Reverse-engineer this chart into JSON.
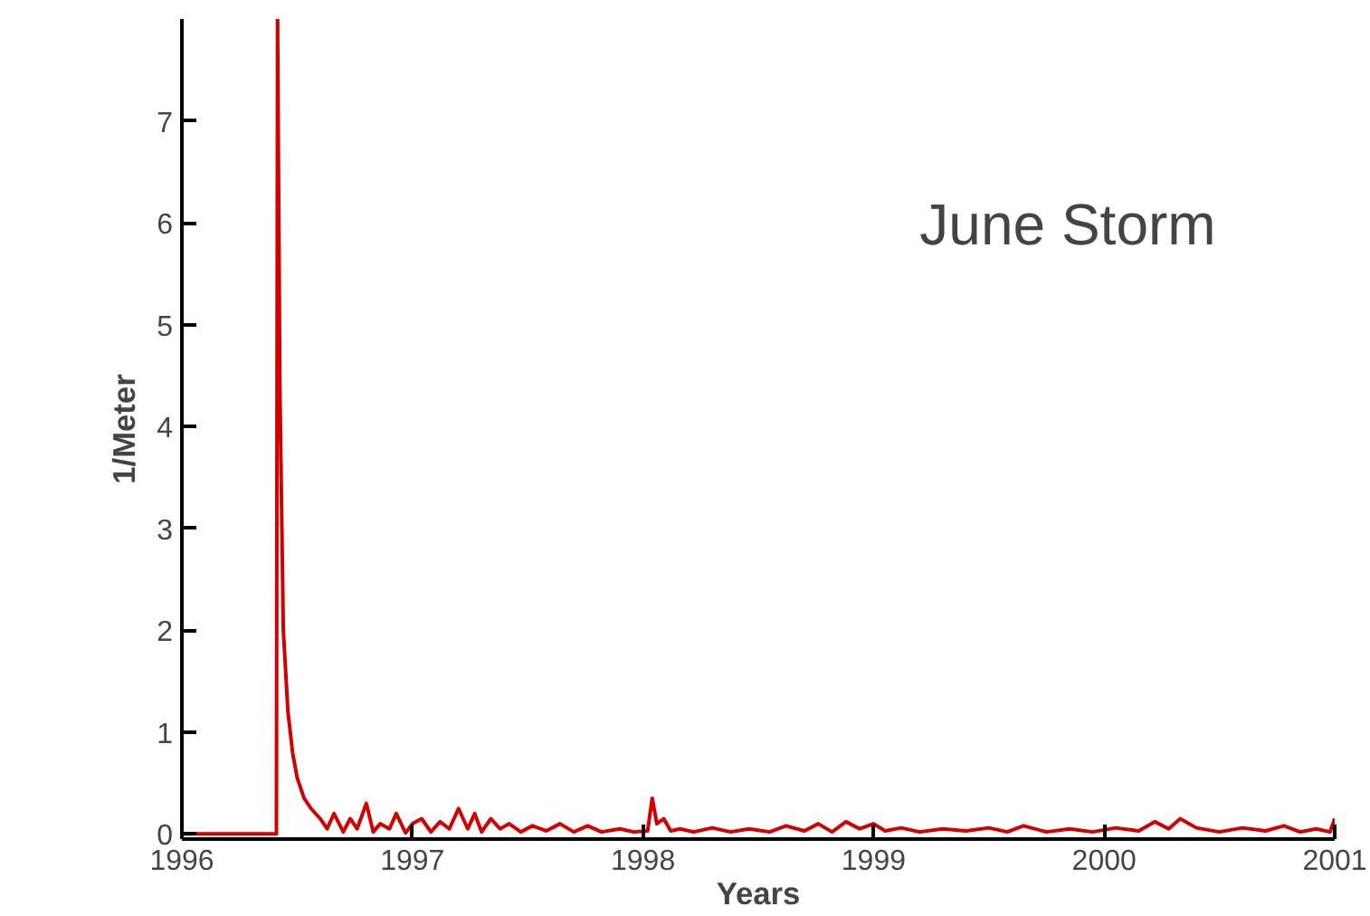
{
  "chart_data": {
    "type": "line",
    "xlabel": "Years",
    "ylabel": "1/Meter",
    "annotations": [
      "June Storm"
    ],
    "xlim": [
      1996,
      2001
    ],
    "ylim": [
      -0.05,
      8
    ],
    "xticks": [
      1996,
      1997,
      1998,
      1999,
      2000,
      2001
    ],
    "yticks": [
      0,
      1,
      2,
      3,
      4,
      5,
      6,
      7
    ],
    "grid": false,
    "marker": "none",
    "line_style": "solid",
    "series": [
      {
        "color": "#d40000",
        "x": [
          1996.0,
          1996.41,
          1996.415,
          1996.425,
          1996.44,
          1996.46,
          1996.48,
          1996.5,
          1996.53,
          1996.56,
          1996.6,
          1996.63,
          1996.66,
          1996.7,
          1996.73,
          1996.76,
          1996.8,
          1996.83,
          1996.86,
          1996.9,
          1996.93,
          1996.97,
          1997.0,
          1997.04,
          1997.08,
          1997.12,
          1997.16,
          1997.2,
          1997.24,
          1997.27,
          1997.3,
          1997.34,
          1997.38,
          1997.42,
          1997.47,
          1997.52,
          1997.58,
          1997.64,
          1997.7,
          1997.76,
          1997.82,
          1997.9,
          1997.96,
          1998.02,
          1998.04,
          1998.06,
          1998.09,
          1998.12,
          1998.16,
          1998.22,
          1998.3,
          1998.38,
          1998.46,
          1998.55,
          1998.62,
          1998.7,
          1998.76,
          1998.82,
          1998.88,
          1998.94,
          1999.0,
          1999.05,
          1999.12,
          1999.2,
          1999.3,
          1999.4,
          1999.5,
          1999.58,
          1999.65,
          1999.75,
          1999.85,
          1999.95,
          2000.05,
          2000.15,
          2000.22,
          2000.28,
          2000.33,
          2000.4,
          2000.5,
          2000.6,
          2000.7,
          2000.78,
          2000.85,
          2000.92,
          2000.98,
          2001.0
        ],
        "values": [
          0,
          0,
          8,
          4.4,
          2,
          1.2,
          0.8,
          0.55,
          0.35,
          0.25,
          0.15,
          0.05,
          0.2,
          0.02,
          0.15,
          0.05,
          0.3,
          0.02,
          0.1,
          0.05,
          0.2,
          0.01,
          0.1,
          0.15,
          0.02,
          0.12,
          0.05,
          0.25,
          0.05,
          0.2,
          0.02,
          0.15,
          0.05,
          0.1,
          0.02,
          0.08,
          0.03,
          0.1,
          0.02,
          0.08,
          0.02,
          0.05,
          0.02,
          0.03,
          0.35,
          0.1,
          0.15,
          0.03,
          0.05,
          0.02,
          0.06,
          0.02,
          0.05,
          0.02,
          0.08,
          0.03,
          0.1,
          0.02,
          0.12,
          0.05,
          0.1,
          0.03,
          0.06,
          0.02,
          0.05,
          0.03,
          0.06,
          0.02,
          0.08,
          0.02,
          0.05,
          0.02,
          0.06,
          0.03,
          0.12,
          0.05,
          0.15,
          0.06,
          0.02,
          0.06,
          0.03,
          0.08,
          0.02,
          0.05,
          0.02,
          0.15
        ]
      }
    ]
  }
}
